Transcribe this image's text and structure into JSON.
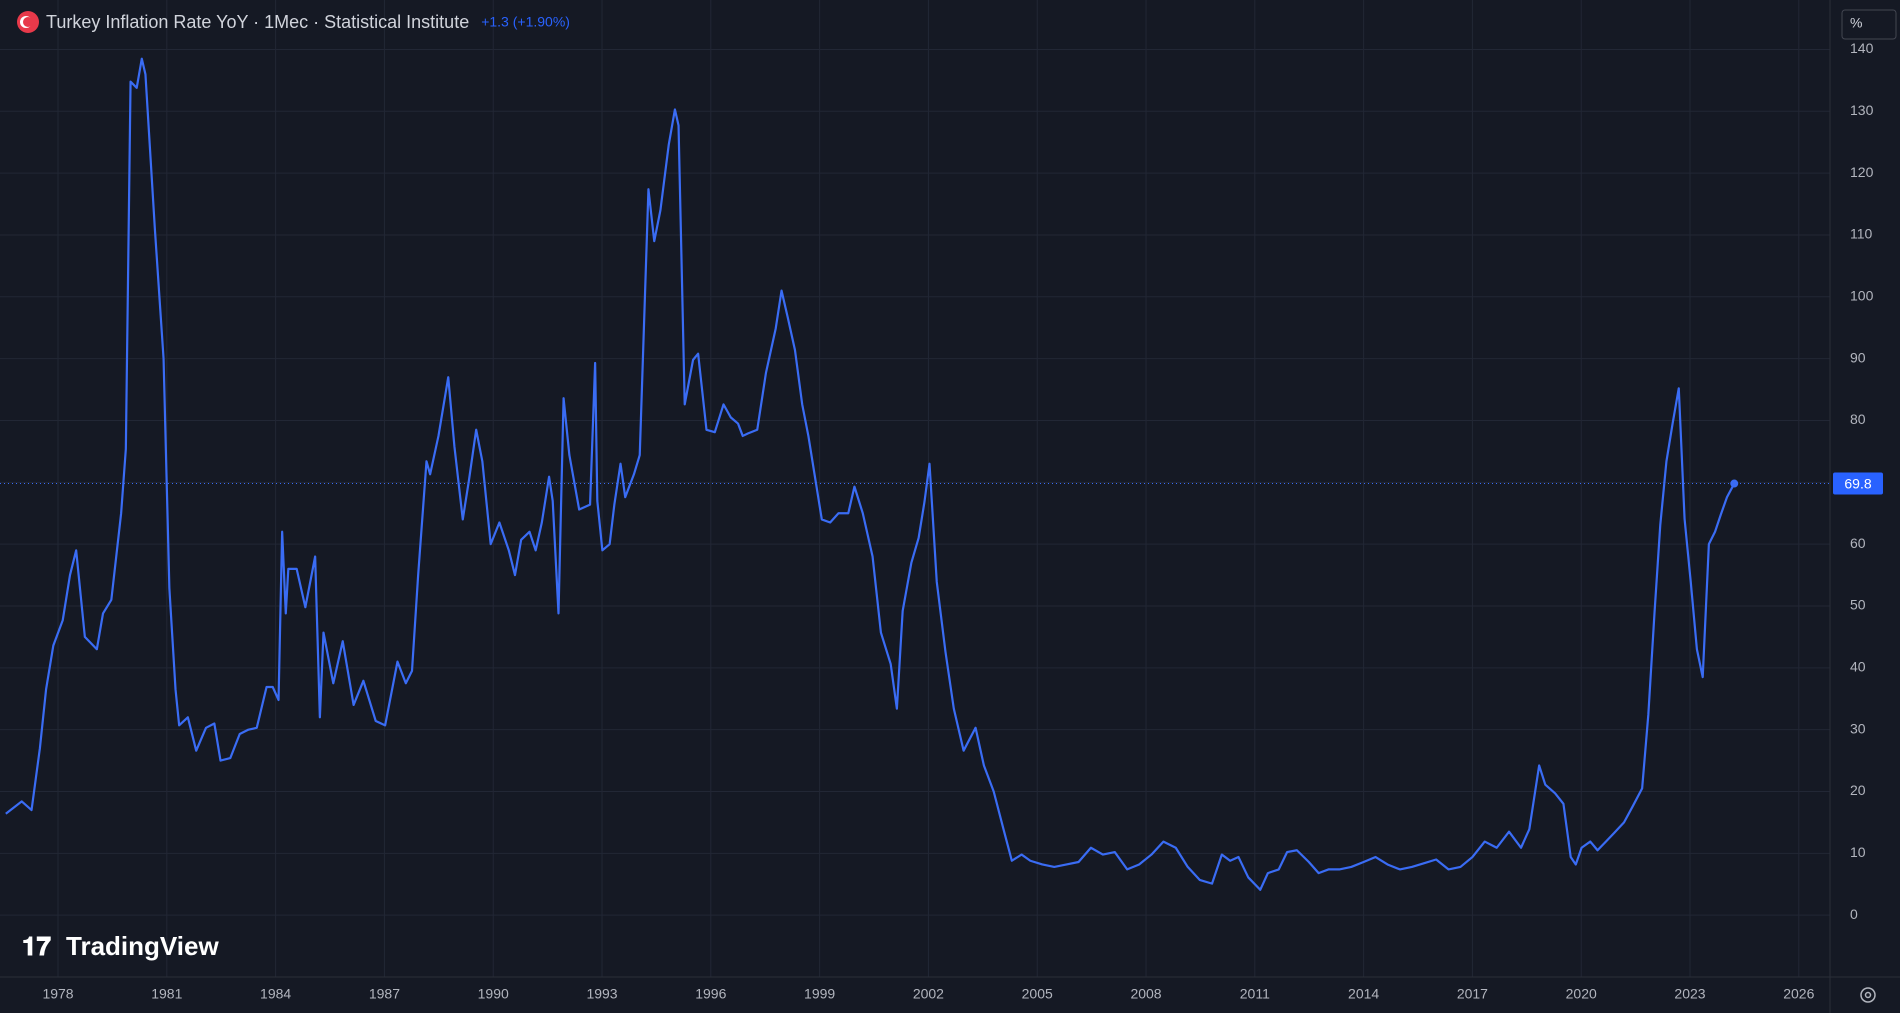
{
  "chart_data": {
    "type": "line",
    "title": "Turkey Inflation Rate YoY · 1Mec · Statistical Institute",
    "change_label": "+1.3 (+1.90%)",
    "unit_label": "%",
    "watermark": "TradingView",
    "color": "#3a6cf4",
    "grid": true,
    "xlim": [
      1976.4,
      2026.86
    ],
    "xticks": [
      1978,
      1981,
      1984,
      1987,
      1990,
      1993,
      1996,
      1999,
      2002,
      2005,
      2008,
      2011,
      2014,
      2017,
      2020,
      2023,
      2026
    ],
    "ylim": [
      -10,
      148
    ],
    "yticks": [
      0,
      10,
      20,
      30,
      40,
      50,
      60,
      70,
      80,
      90,
      100,
      110,
      120,
      130,
      140
    ],
    "x": [
      1976.56,
      1977.0,
      1977.27,
      1977.5,
      1977.67,
      1977.87,
      1978.13,
      1978.33,
      1978.5,
      1978.74,
      1979.07,
      1979.24,
      1979.47,
      1979.74,
      1979.87,
      1980.0,
      1980.17,
      1980.31,
      1980.41,
      1980.67,
      1980.91,
      1981.07,
      1981.24,
      1981.34,
      1981.58,
      1981.81,
      1982.08,
      1982.31,
      1982.48,
      1982.75,
      1983.01,
      1983.25,
      1983.48,
      1983.75,
      1983.92,
      1984.08,
      1984.18,
      1984.28,
      1984.35,
      1984.58,
      1984.82,
      1985.09,
      1985.22,
      1985.32,
      1985.59,
      1985.85,
      1986.15,
      1986.42,
      1986.76,
      1987.02,
      1987.36,
      1987.59,
      1987.76,
      1987.93,
      1988.16,
      1988.26,
      1988.49,
      1988.76,
      1988.93,
      1989.16,
      1989.33,
      1989.53,
      1989.7,
      1989.93,
      1990.17,
      1990.43,
      1990.6,
      1990.77,
      1991.0,
      1991.17,
      1991.34,
      1991.54,
      1991.64,
      1991.8,
      1991.94,
      1992.1,
      1992.37,
      1992.67,
      1992.81,
      1992.87,
      1993.01,
      1993.21,
      1993.34,
      1993.51,
      1993.64,
      1993.88,
      1994.04,
      1994.28,
      1994.44,
      1994.61,
      1994.84,
      1995.01,
      1995.11,
      1995.28,
      1995.51,
      1995.65,
      1995.88,
      1996.11,
      1996.35,
      1996.55,
      1996.75,
      1996.88,
      1997.02,
      1997.28,
      1997.52,
      1997.79,
      1997.95,
      1998.12,
      1998.32,
      1998.52,
      1998.69,
      1998.86,
      1999.06,
      1999.29,
      1999.52,
      1999.79,
      1999.96,
      2000.19,
      2000.46,
      2000.69,
      2000.96,
      2001.13,
      2001.29,
      2001.53,
      2001.73,
      2001.89,
      2002.03,
      2002.23,
      2002.47,
      2002.7,
      2002.97,
      2003.3,
      2003.53,
      2003.8,
      2004.07,
      2004.3,
      2004.57,
      2004.81,
      2005.14,
      2005.47,
      2005.81,
      2006.14,
      2006.48,
      2006.81,
      2007.14,
      2007.48,
      2007.81,
      2008.15,
      2008.48,
      2008.82,
      2009.15,
      2009.48,
      2009.82,
      2010.09,
      2010.32,
      2010.55,
      2010.82,
      2011.15,
      2011.36,
      2011.66,
      2011.89,
      2012.16,
      2012.49,
      2012.76,
      2013.03,
      2013.33,
      2013.66,
      2014.0,
      2014.33,
      2014.66,
      2015.0,
      2015.33,
      2015.67,
      2016.0,
      2016.34,
      2016.67,
      2017.0,
      2017.34,
      2017.67,
      2018.01,
      2018.34,
      2018.57,
      2018.84,
      2019.01,
      2019.28,
      2019.51,
      2019.71,
      2019.85,
      2020.01,
      2020.25,
      2020.45,
      2020.68,
      2020.91,
      2021.18,
      2021.42,
      2021.68,
      2021.85,
      2022.02,
      2022.18,
      2022.35,
      2022.52,
      2022.69,
      2022.85,
      2023.02,
      2023.19,
      2023.35,
      2023.52,
      2023.69,
      2023.85,
      2024.02,
      2024.22
    ],
    "values": [
      16.4,
      18.4,
      17,
      27,
      36.5,
      43.6,
      47.7,
      55,
      59,
      45,
      43,
      48.8,
      51,
      65,
      75.4,
      134.8,
      133.8,
      138.5,
      136,
      111,
      90,
      52.9,
      36.5,
      30.7,
      32,
      26.6,
      30.3,
      31,
      25,
      25.4,
      29.3,
      30,
      30.3,
      36.9,
      36.9,
      34.8,
      62,
      48.8,
      56,
      56,
      49.8,
      58,
      32,
      45.7,
      37.5,
      44.3,
      34,
      37.9,
      31.4,
      30.7,
      41,
      37.5,
      39.5,
      55,
      73.4,
      71.3,
      77.5,
      87,
      75.8,
      64,
      70.3,
      78.5,
      73.4,
      60,
      63.5,
      59,
      55,
      60.7,
      62,
      59,
      63.5,
      70.9,
      67,
      48.8,
      83.6,
      74.4,
      65.6,
      66.4,
      89.3,
      67,
      59,
      60,
      66.4,
      73,
      67.6,
      71.3,
      74.4,
      117.4,
      109,
      114,
      124.6,
      130.3,
      127.7,
      82.6,
      89.8,
      90.8,
      78.5,
      78.1,
      82.6,
      80.5,
      79.5,
      77.5,
      77.9,
      78.5,
      87.7,
      94.9,
      101,
      96.7,
      91.4,
      82.6,
      77.5,
      71.3,
      64,
      63.5,
      65,
      65,
      69.3,
      65,
      58,
      45.7,
      40.6,
      33.4,
      49.2,
      57,
      61,
      66.8,
      73,
      53.9,
      42.6,
      33.4,
      26.6,
      30.3,
      24.2,
      20,
      13.9,
      8.8,
      9.8,
      8.8,
      8.2,
      7.8,
      8.2,
      8.6,
      10.9,
      9.8,
      10.2,
      7.4,
      8.2,
      9.8,
      11.9,
      10.9,
      7.8,
      5.7,
      5.1,
      9.8,
      8.8,
      9.4,
      6.1,
      4.1,
      6.8,
      7.4,
      10.2,
      10.5,
      8.6,
      6.8,
      7.4,
      7.4,
      7.8,
      8.6,
      9.4,
      8.2,
      7.4,
      7.8,
      8.4,
      9,
      7.4,
      7.8,
      9.4,
      11.9,
      10.9,
      13.5,
      10.9,
      13.9,
      24.2,
      21.1,
      19.7,
      18,
      9.4,
      8.2,
      10.9,
      11.9,
      10.5,
      11.9,
      13.3,
      15,
      17.6,
      20.5,
      32.4,
      48.8,
      63.1,
      73.4,
      79.5,
      85.2,
      64.1,
      53.9,
      43,
      38.5,
      60,
      62,
      64.8,
      67.6,
      69.8
    ]
  }
}
